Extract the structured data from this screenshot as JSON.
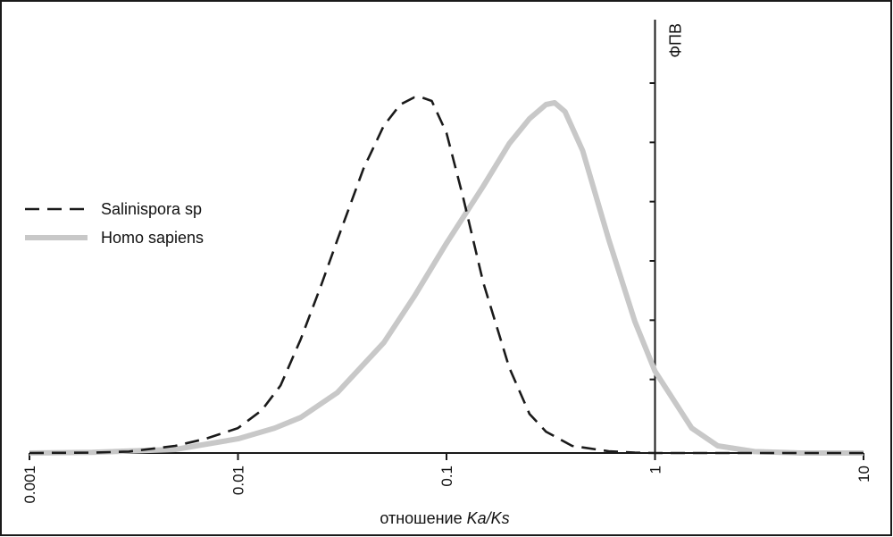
{
  "chart_data": {
    "type": "line",
    "x_scale": "log",
    "xlim": [
      0.001,
      10
    ],
    "ylim": [
      0,
      1
    ],
    "x_ticks": [
      "0.001",
      "0.01",
      "0.1",
      "1",
      "10"
    ],
    "x_tick_values": [
      0.001,
      0.01,
      0.1,
      1,
      10
    ],
    "y_tick_values": [
      0.1667,
      0.3333,
      0.5,
      0.6667,
      0.8333,
      1.0
    ],
    "xlabel": {
      "prefix": "отношение ",
      "italic": "Ka/Ks"
    },
    "ylabel": "ФПВ",
    "y_axis_at_x": 1,
    "grid": false,
    "legend_position": "left",
    "series": [
      {
        "name": "Salinispora sp",
        "style": "dashed",
        "color": "#1a1a1a",
        "x": [
          0.001,
          0.002,
          0.003,
          0.005,
          0.007,
          0.01,
          0.013,
          0.016,
          0.02,
          0.025,
          0.03,
          0.04,
          0.05,
          0.06,
          0.07,
          0.076,
          0.085,
          0.1,
          0.12,
          0.15,
          0.2,
          0.25,
          0.3,
          0.4,
          0.6,
          0.8,
          1.0,
          10
        ],
        "y": [
          0.0,
          0.001,
          0.004,
          0.02,
          0.04,
          0.07,
          0.12,
          0.19,
          0.32,
          0.47,
          0.6,
          0.8,
          0.92,
          0.98,
          1.0,
          1.0,
          0.99,
          0.9,
          0.72,
          0.48,
          0.24,
          0.11,
          0.06,
          0.02,
          0.005,
          0.001,
          0.0,
          0.0
        ]
      },
      {
        "name": "Homo sapiens",
        "style": "solid",
        "color": "#c8c8c8",
        "x": [
          0.001,
          0.002,
          0.005,
          0.01,
          0.015,
          0.02,
          0.03,
          0.05,
          0.07,
          0.1,
          0.15,
          0.2,
          0.25,
          0.3,
          0.33,
          0.37,
          0.45,
          0.6,
          0.8,
          1.0,
          1.5,
          2.0,
          3.0,
          5.0,
          10
        ],
        "y": [
          0.0,
          0.002,
          0.01,
          0.04,
          0.07,
          0.1,
          0.17,
          0.31,
          0.44,
          0.59,
          0.75,
          0.87,
          0.94,
          0.98,
          0.985,
          0.96,
          0.85,
          0.6,
          0.37,
          0.23,
          0.07,
          0.02,
          0.004,
          0.0,
          0.0
        ]
      }
    ]
  }
}
